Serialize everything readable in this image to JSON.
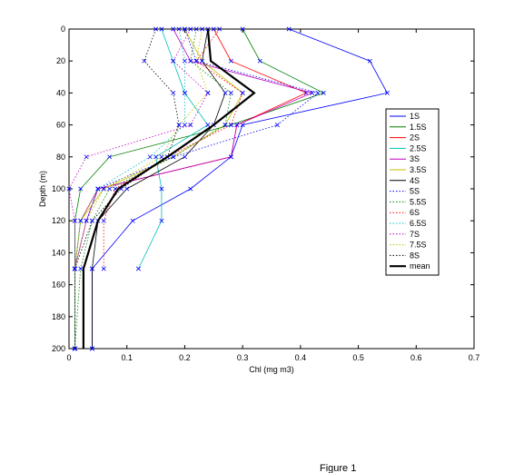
{
  "caption": "Figure 1",
  "chart_data": {
    "type": "line",
    "xlabel": "Chl (mg m3)",
    "ylabel": "Depth (m)",
    "xlim": [
      0,
      0.7
    ],
    "ylim": [
      0,
      200
    ],
    "y_reversed": true,
    "xticks": [
      "0",
      "0.1",
      "0.2",
      "0.3",
      "0.4",
      "0.5",
      "0.6",
      "0.7"
    ],
    "yticks": [
      "0",
      "20",
      "40",
      "60",
      "80",
      "100",
      "120",
      "140",
      "160",
      "180",
      "200"
    ],
    "grid": false,
    "legend_position": "right",
    "series": [
      {
        "name": "1S",
        "color": "#0000ff",
        "dash": "solid",
        "marker": "x",
        "x": [
          0.38,
          0.52,
          0.55,
          0.3,
          0.28,
          0.21,
          0.11,
          0.04,
          0.04
        ],
        "y": [
          0,
          20,
          40,
          60,
          80,
          100,
          120,
          150,
          200
        ]
      },
      {
        "name": "1.5S",
        "color": "#008000",
        "dash": "solid",
        "marker": "x",
        "x": [
          0.3,
          0.33,
          0.44,
          0.28,
          0.07,
          0.02,
          0.01,
          0.01,
          0.01
        ],
        "y": [
          0,
          20,
          40,
          60,
          80,
          100,
          120,
          150,
          200
        ]
      },
      {
        "name": "2S",
        "color": "#ff0000",
        "dash": "solid",
        "marker": "x",
        "x": [
          0.25,
          0.28,
          0.41,
          0.29,
          0.28,
          0.05,
          0.02,
          0.01,
          0.01
        ],
        "y": [
          0,
          20,
          40,
          60,
          80,
          100,
          120,
          150,
          200
        ]
      },
      {
        "name": "2.5S",
        "color": "#00bfbf",
        "dash": "solid",
        "marker": "x",
        "x": [
          0.16,
          0.18,
          0.2,
          0.24,
          0.15,
          0.16,
          0.16,
          0.12
        ],
        "y": [
          0,
          20,
          40,
          60,
          80,
          100,
          120,
          150
        ]
      },
      {
        "name": "3S",
        "color": "#bf00bf",
        "dash": "solid",
        "marker": "x",
        "x": [
          0.18,
          0.21,
          0.42,
          0.29,
          0.28,
          0.05,
          0.03,
          0.01,
          0.01
        ],
        "y": [
          0,
          20,
          40,
          60,
          80,
          100,
          120,
          150,
          200
        ]
      },
      {
        "name": "3.5S",
        "color": "#bfbf00",
        "dash": "solid",
        "marker": "x",
        "x": [
          0.2,
          0.23,
          0.3,
          0.27,
          0.18,
          0.06,
          0.02,
          0.01,
          0.01
        ],
        "y": [
          0,
          20,
          40,
          60,
          80,
          100,
          120,
          150,
          200
        ]
      },
      {
        "name": "4S",
        "color": "#000000",
        "dash": "solid",
        "marker": "x",
        "x": [
          0.24,
          0.23,
          0.27,
          0.25,
          0.2,
          0.1,
          0.05,
          0.04,
          0.04
        ],
        "y": [
          0,
          20,
          40,
          60,
          80,
          100,
          120,
          150,
          200
        ]
      },
      {
        "name": "5S",
        "color": "#0000ff",
        "dash": "dotted",
        "marker": "x",
        "x": [
          0.2,
          0.22,
          0.43,
          0.36,
          0.18,
          0.05,
          0.03,
          0.01,
          0.01
        ],
        "y": [
          0,
          20,
          40,
          60,
          80,
          100,
          120,
          150,
          200
        ]
      },
      {
        "name": "5.5S",
        "color": "#008000",
        "dash": "dotted",
        "marker": "x",
        "x": [
          0.22,
          0.21,
          0.28,
          0.27,
          0.18,
          0.07,
          0.04,
          0.02,
          0.01
        ],
        "y": [
          0,
          20,
          40,
          60,
          80,
          100,
          120,
          150,
          200
        ]
      },
      {
        "name": "6S",
        "color": "#ff0000",
        "dash": "dotted",
        "marker": "x",
        "x": [
          0.26,
          0.22,
          0.3,
          0.28,
          0.17,
          0.08,
          0.06,
          0.06
        ],
        "y": [
          0,
          20,
          40,
          60,
          80,
          100,
          120,
          150
        ]
      },
      {
        "name": "6.5S",
        "color": "#00bfbf",
        "dash": "dotted",
        "marker": "x",
        "x": [
          0.19,
          0.2,
          0.2,
          0.2,
          0.14,
          0.05,
          0.02,
          0.01,
          0.01
        ],
        "y": [
          0,
          20,
          40,
          60,
          80,
          100,
          120,
          150,
          200
        ]
      },
      {
        "name": "7S",
        "color": "#bf00bf",
        "dash": "dotted",
        "marker": "x",
        "x": [
          0.21,
          0.18,
          0.24,
          0.21,
          0.03,
          0.0,
          0.01,
          0.01
        ],
        "y": [
          0,
          20,
          40,
          60,
          80,
          100,
          120,
          150
        ]
      },
      {
        "name": "7.5S",
        "color": "#bfbf00",
        "dash": "dotted",
        "marker": "x",
        "x": [
          0.23,
          0.22,
          0.24,
          0.19,
          0.16,
          0.06,
          0.03,
          0.01,
          0.01
        ],
        "y": [
          0,
          20,
          40,
          60,
          80,
          100,
          120,
          150,
          200
        ]
      },
      {
        "name": "8S",
        "color": "#000000",
        "dash": "dotted",
        "marker": "x",
        "x": [
          0.15,
          0.13,
          0.18,
          0.19,
          0.17,
          0.09,
          0.04,
          0.01,
          0.01
        ],
        "y": [
          0,
          20,
          40,
          60,
          80,
          100,
          120,
          150,
          200
        ]
      },
      {
        "name": "mean",
        "color": "#000000",
        "dash": "solid",
        "marker": "none",
        "width": 2.2,
        "x": [
          0.24,
          0.245,
          0.32,
          0.25,
          0.17,
          0.085,
          0.05,
          0.025,
          0.025
        ],
        "y": [
          0,
          20,
          40,
          60,
          80,
          100,
          120,
          150,
          200
        ]
      }
    ]
  }
}
